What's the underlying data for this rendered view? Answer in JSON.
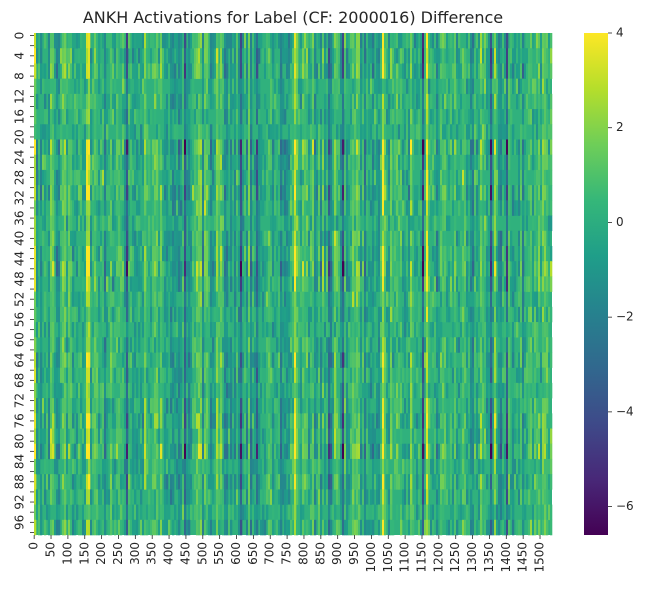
{
  "chart_data": {
    "type": "heatmap",
    "title": "ANKH Activations for Label (CF: 2000016) Difference",
    "xlabel": "",
    "ylabel": "",
    "x_range": [
      0,
      1536
    ],
    "y_range": [
      0,
      99
    ],
    "x_ticks": [
      "0",
      "50",
      "100",
      "150",
      "200",
      "250",
      "300",
      "350",
      "400",
      "450",
      "500",
      "550",
      "600",
      "650",
      "700",
      "750",
      "800",
      "850",
      "900",
      "950",
      "1000",
      "1050",
      "1100",
      "1150",
      "1200",
      "1250",
      "1300",
      "1350",
      "1400",
      "1450",
      "1500"
    ],
    "y_ticks": [
      "0",
      "4",
      "8",
      "12",
      "16",
      "20",
      "24",
      "28",
      "32",
      "36",
      "40",
      "44",
      "48",
      "52",
      "56",
      "60",
      "64",
      "68",
      "72",
      "76",
      "80",
      "84",
      "88",
      "92",
      "96"
    ],
    "colorbar": {
      "min": -6.6,
      "max": 4.0,
      "ticks": [
        "4",
        "2",
        "0",
        "−2",
        "−4",
        "−6"
      ],
      "tick_values": [
        4,
        2,
        0,
        -2,
        -4,
        -6
      ],
      "colormap": "viridis"
    },
    "colors": {
      "viridis": [
        "#440154",
        "#482878",
        "#3e4a89",
        "#31688e",
        "#26828e",
        "#1f9e89",
        "#35b779",
        "#6ece58",
        "#b5de2b",
        "#fde725"
      ],
      "dominant": "#21a685"
    }
  }
}
